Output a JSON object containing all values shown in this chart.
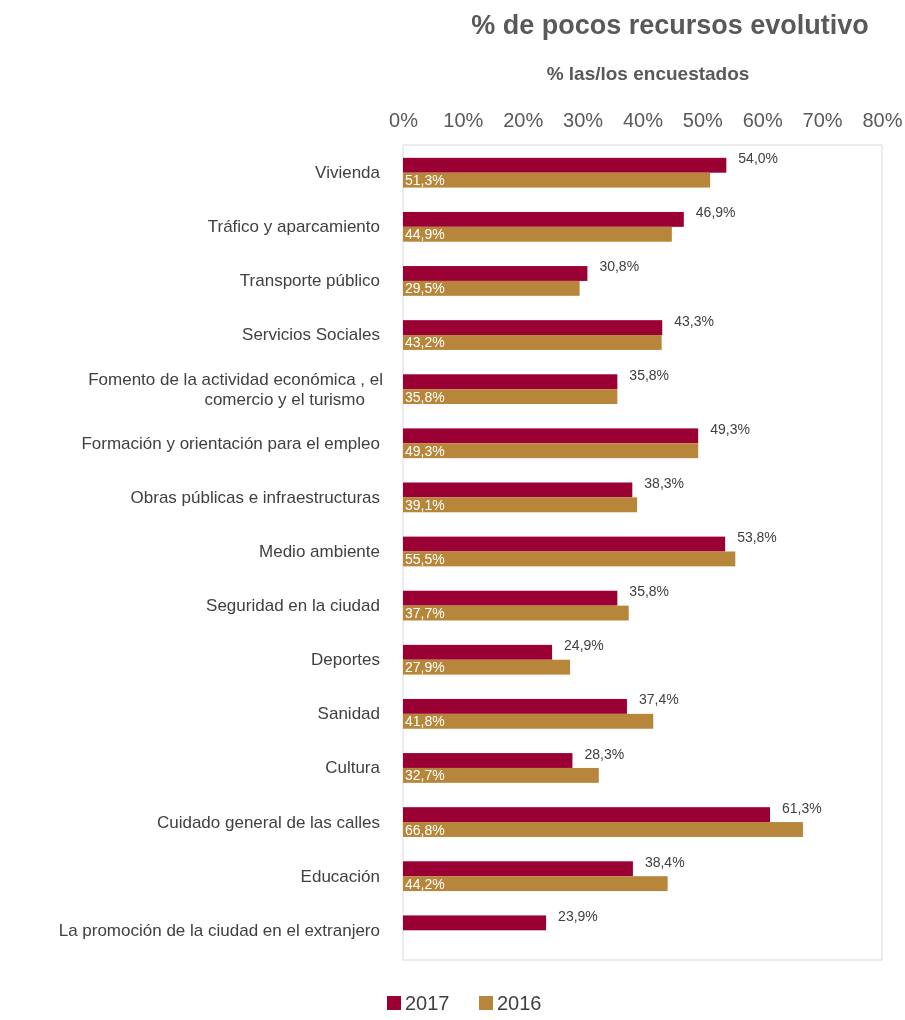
{
  "chart_data": {
    "type": "bar",
    "orientation": "horizontal",
    "title": "% de pocos recursos evolutivo",
    "subtitle": "% las/los encuestados",
    "categories": [
      "Vivienda",
      "Tráfico y aparcamiento",
      "Transporte público",
      "Servicios Sociales",
      "Fomento de la actividad económica , el comercio y el turismo",
      "Formación y orientación para el empleo",
      "Obras públicas e infraestructuras",
      "Medio ambiente",
      "Seguridad en la ciudad",
      "Deportes",
      "Sanidad",
      "Cultura",
      "Cuidado general de las calles",
      "Educación",
      "La promoción de la ciudad en el extranjero"
    ],
    "series": [
      {
        "name": "2017",
        "color": "#9b0034",
        "values": [
          54.0,
          46.9,
          30.8,
          43.3,
          35.8,
          49.3,
          38.3,
          53.8,
          35.8,
          24.9,
          37.4,
          28.3,
          61.3,
          38.4,
          23.9
        ],
        "value_labels": [
          "54,0%",
          "46,9%",
          "30,8%",
          "43,3%",
          "35,8%",
          "49,3%",
          "38,3%",
          "53,8%",
          "35,8%",
          "24,9%",
          "37,4%",
          "28,3%",
          "61,3%",
          "38,4%",
          "23,9%"
        ]
      },
      {
        "name": "2016",
        "color": "#b8863b",
        "values": [
          51.3,
          44.9,
          29.5,
          43.2,
          35.8,
          49.3,
          39.1,
          55.5,
          37.7,
          27.9,
          41.8,
          32.7,
          66.8,
          44.2,
          null
        ],
        "value_labels": [
          "51,3%",
          "44,9%",
          "29,5%",
          "43,2%",
          "35,8%",
          "49,3%",
          "39,1%",
          "55,5%",
          "37,7%",
          "27,9%",
          "41,8%",
          "32,7%",
          "66,8%",
          "44,2%",
          null
        ]
      }
    ],
    "xlim": [
      0,
      80
    ],
    "xticks": [
      {
        "value": 0,
        "label": "0%"
      },
      {
        "value": 10,
        "label": "10%"
      },
      {
        "value": 20,
        "label": "20%"
      },
      {
        "value": 30,
        "label": "30%"
      },
      {
        "value": 40,
        "label": "40%"
      },
      {
        "value": 50,
        "label": "50%"
      },
      {
        "value": 60,
        "label": "60%"
      },
      {
        "value": 70,
        "label": "70%"
      },
      {
        "value": 80,
        "label": "80%"
      }
    ],
    "grid": false,
    "legend": "bottom"
  }
}
